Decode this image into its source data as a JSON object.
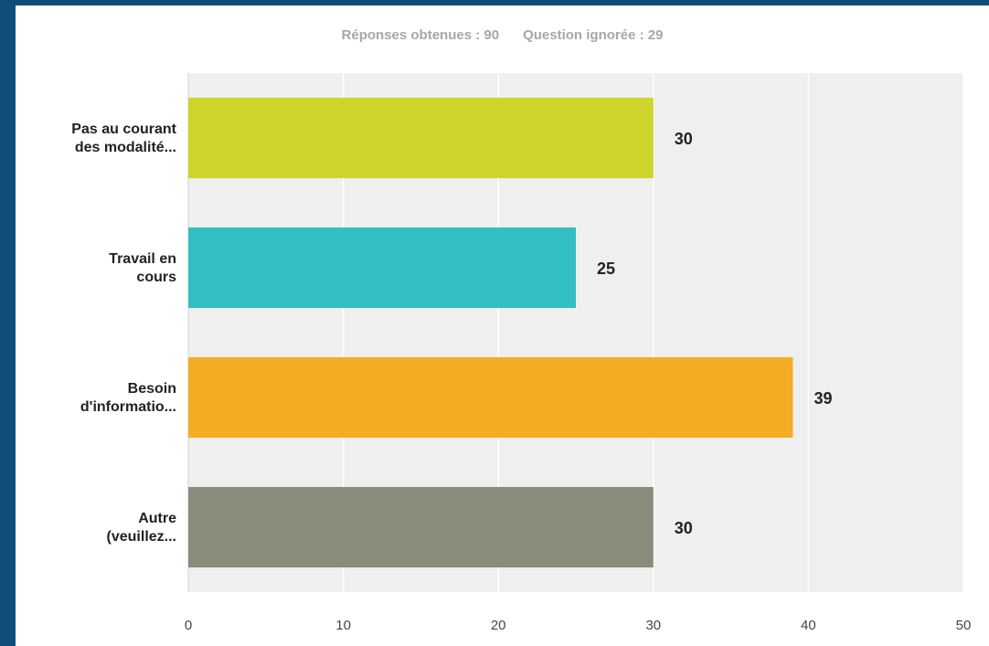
{
  "summary": {
    "answered": "Réponses obtenues : 90",
    "skipped": "Question ignorée : 29"
  },
  "colors": {
    "background": "#0d4f78",
    "plot_bg": "#efefef",
    "gridline": "#ffffff"
  },
  "chart_data": {
    "type": "bar",
    "orientation": "horizontal",
    "categories": [
      [
        "Pas au courant",
        "des modalité..."
      ],
      [
        "Travail en",
        "cours"
      ],
      [
        "Besoin",
        "d'informatio..."
      ],
      [
        "Autre",
        "(veuillez..."
      ]
    ],
    "values": [
      30,
      25,
      39,
      30
    ],
    "bar_colors": [
      "#cdd42b",
      "#33bec1",
      "#f4ad22",
      "#8a8b7a"
    ],
    "xlim": [
      0,
      50
    ],
    "x_ticks": [
      0,
      10,
      20,
      30,
      40,
      50
    ],
    "grid": true,
    "data_labels": true
  }
}
